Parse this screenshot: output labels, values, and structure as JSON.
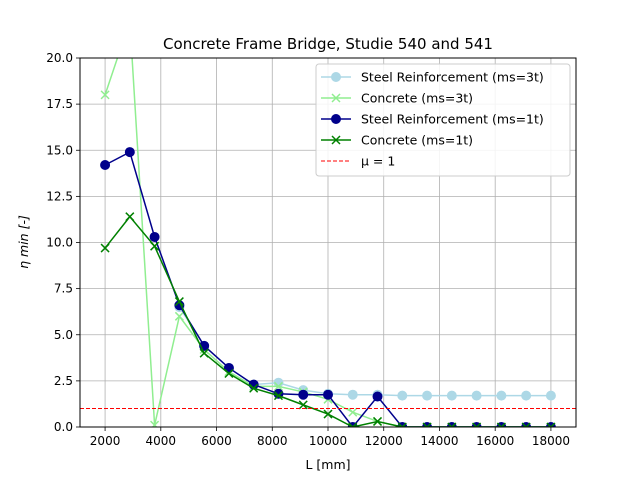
{
  "chart_data": {
    "type": "line",
    "title": "Concrete Frame Bridge, Studie 540 and 541",
    "xlabel": "L [mm]",
    "ylabel": "η min [-]",
    "xlim": [
      1100,
      18900
    ],
    "ylim": [
      0,
      20
    ],
    "xticks": [
      "2000",
      "4000",
      "6000",
      "8000",
      "10000",
      "12000",
      "14000",
      "16000",
      "18000"
    ],
    "yticks": [
      "0.0",
      "2.5",
      "5.0",
      "7.5",
      "10.0",
      "12.5",
      "15.0",
      "17.5",
      "20.0"
    ],
    "grid": true,
    "legend_position": "top-right",
    "x": [
      2000,
      2888,
      3777,
      4666,
      5555,
      6444,
      7333,
      8222,
      9111,
      10000,
      10888,
      11777,
      12666,
      13555,
      14444,
      15333,
      16222,
      17111,
      18000
    ],
    "series": [
      {
        "name": "Steel Reinforcement (ms=3t)",
        "color": "#add8e6",
        "marker": "circle",
        "linestyle": "solid",
        "values": [
          null,
          null,
          null,
          6.5,
          4.4,
          3.2,
          2.3,
          2.4,
          2.0,
          1.8,
          1.75,
          1.75,
          1.7,
          1.7,
          1.7,
          1.7,
          1.7,
          1.7,
          1.7
        ]
      },
      {
        "name": "Concrete (ms=3t)",
        "color": "#90ee90",
        "marker": "x",
        "linestyle": "solid",
        "values": [
          18.0,
          22.0,
          0.1,
          6.0,
          4.2,
          3.0,
          2.2,
          2.2,
          1.9,
          1.5,
          0.8,
          0.3,
          0.0,
          0.0,
          0.0,
          0.0,
          0.0,
          0.0,
          0.0
        ]
      },
      {
        "name": "Steel Reinforcement (ms=1t)",
        "color": "#00008b",
        "marker": "circle",
        "linestyle": "solid",
        "values": [
          14.2,
          14.9,
          10.3,
          6.6,
          4.4,
          3.2,
          2.3,
          1.8,
          1.75,
          1.75,
          0.0,
          1.65,
          0.0,
          0.0,
          0.0,
          0.0,
          0.0,
          0.0,
          0.0
        ]
      },
      {
        "name": "Concrete (ms=1t)",
        "color": "#008000",
        "marker": "x",
        "linestyle": "solid",
        "values": [
          9.7,
          11.4,
          9.8,
          6.8,
          4.0,
          2.9,
          2.1,
          1.7,
          1.2,
          0.7,
          0.0,
          0.3,
          0.0,
          0.0,
          0.0,
          0.0,
          0.0,
          0.0,
          0.0
        ]
      }
    ],
    "reference_line": {
      "name": "μ = 1",
      "y": 1,
      "color": "#ff0000",
      "linestyle": "dashed"
    }
  }
}
